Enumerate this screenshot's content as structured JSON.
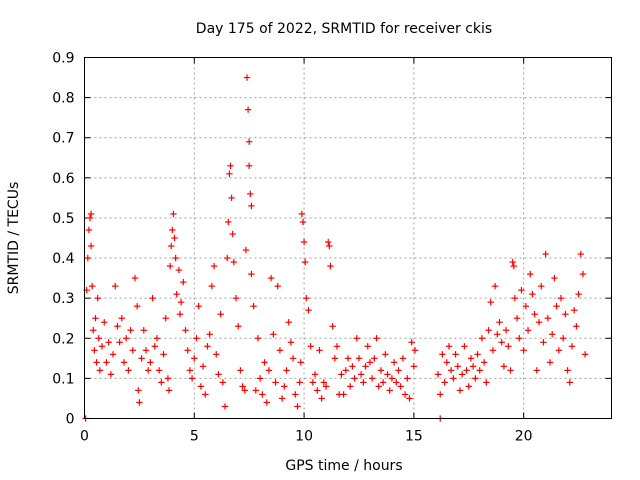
{
  "chart_data": {
    "type": "scatter",
    "title": "Day 175 of 2022, SRMTID for receiver ckis",
    "xlabel": "GPS time / hours",
    "ylabel": "SRMTID / TECUs",
    "xlim": [
      0,
      24
    ],
    "ylim": [
      0,
      0.9
    ],
    "x_ticks": [
      0,
      5,
      10,
      15,
      20
    ],
    "x_tick_labels": [
      "0",
      "5",
      "10",
      "15",
      "20"
    ],
    "y_ticks": [
      0,
      0.1,
      0.2,
      0.3,
      0.4,
      0.5,
      0.6,
      0.7,
      0.8,
      0.9
    ],
    "y_tick_labels": [
      "0",
      "0.1",
      "0.2",
      "0.3",
      "0.4",
      "0.5",
      "0.6",
      "0.7",
      "0.8",
      "0.9"
    ],
    "grid": true,
    "marker": "+",
    "color": "#ff0000",
    "series": [
      {
        "name": "SRMTID",
        "points": [
          [
            0.05,
            0.0
          ],
          [
            16.2,
            0.0
          ],
          [
            0.1,
            0.32
          ],
          [
            0.15,
            0.4
          ],
          [
            0.2,
            0.47
          ],
          [
            0.25,
            0.5
          ],
          [
            0.3,
            0.51
          ],
          [
            0.3,
            0.43
          ],
          [
            0.35,
            0.33
          ],
          [
            0.4,
            0.22
          ],
          [
            0.45,
            0.17
          ],
          [
            0.5,
            0.25
          ],
          [
            0.55,
            0.14
          ],
          [
            0.6,
            0.3
          ],
          [
            0.65,
            0.2
          ],
          [
            0.7,
            0.12
          ],
          [
            0.8,
            0.18
          ],
          [
            0.9,
            0.24
          ],
          [
            1.0,
            0.14
          ],
          [
            1.1,
            0.19
          ],
          [
            1.2,
            0.11
          ],
          [
            1.3,
            0.16
          ],
          [
            1.4,
            0.33
          ],
          [
            1.5,
            0.23
          ],
          [
            1.6,
            0.19
          ],
          [
            1.7,
            0.25
          ],
          [
            1.8,
            0.14
          ],
          [
            1.9,
            0.2
          ],
          [
            2.0,
            0.12
          ],
          [
            2.1,
            0.22
          ],
          [
            2.2,
            0.17
          ],
          [
            2.3,
            0.35
          ],
          [
            2.4,
            0.28
          ],
          [
            2.45,
            0.07
          ],
          [
            2.5,
            0.04
          ],
          [
            2.6,
            0.15
          ],
          [
            2.7,
            0.22
          ],
          [
            2.8,
            0.17
          ],
          [
            2.9,
            0.12
          ],
          [
            3.0,
            0.14
          ],
          [
            3.1,
            0.3
          ],
          [
            3.2,
            0.18
          ],
          [
            3.3,
            0.2
          ],
          [
            3.4,
            0.12
          ],
          [
            3.5,
            0.09
          ],
          [
            3.6,
            0.16
          ],
          [
            3.7,
            0.25
          ],
          [
            3.8,
            0.1
          ],
          [
            3.85,
            0.07
          ],
          [
            3.9,
            0.38
          ],
          [
            3.95,
            0.43
          ],
          [
            4.0,
            0.47
          ],
          [
            4.05,
            0.51
          ],
          [
            4.1,
            0.45
          ],
          [
            4.15,
            0.4
          ],
          [
            4.2,
            0.31
          ],
          [
            4.3,
            0.37
          ],
          [
            4.35,
            0.26
          ],
          [
            4.4,
            0.29
          ],
          [
            4.5,
            0.34
          ],
          [
            4.6,
            0.22
          ],
          [
            4.7,
            0.17
          ],
          [
            4.8,
            0.12
          ],
          [
            4.9,
            0.1
          ],
          [
            5.0,
            0.15
          ],
          [
            5.1,
            0.2
          ],
          [
            5.2,
            0.28
          ],
          [
            5.3,
            0.08
          ],
          [
            5.4,
            0.13
          ],
          [
            5.5,
            0.06
          ],
          [
            5.6,
            0.18
          ],
          [
            5.7,
            0.21
          ],
          [
            5.8,
            0.33
          ],
          [
            5.9,
            0.38
          ],
          [
            6.0,
            0.16
          ],
          [
            6.1,
            0.11
          ],
          [
            6.2,
            0.26
          ],
          [
            6.3,
            0.09
          ],
          [
            6.4,
            0.03
          ],
          [
            6.5,
            0.4
          ],
          [
            6.55,
            0.49
          ],
          [
            6.6,
            0.61
          ],
          [
            6.65,
            0.63
          ],
          [
            6.7,
            0.55
          ],
          [
            6.75,
            0.46
          ],
          [
            6.8,
            0.39
          ],
          [
            6.9,
            0.3
          ],
          [
            7.0,
            0.23
          ],
          [
            7.1,
            0.12
          ],
          [
            7.2,
            0.08
          ],
          [
            7.3,
            0.07
          ],
          [
            7.35,
            0.42
          ],
          [
            7.4,
            0.85
          ],
          [
            7.45,
            0.77
          ],
          [
            7.5,
            0.69
          ],
          [
            7.5,
            0.63
          ],
          [
            7.55,
            0.56
          ],
          [
            7.6,
            0.53
          ],
          [
            7.6,
            0.36
          ],
          [
            7.7,
            0.28
          ],
          [
            7.8,
            0.07
          ],
          [
            7.9,
            0.2
          ],
          [
            8.0,
            0.1
          ],
          [
            8.1,
            0.06
          ],
          [
            8.2,
            0.14
          ],
          [
            8.3,
            0.04
          ],
          [
            8.4,
            0.12
          ],
          [
            8.5,
            0.35
          ],
          [
            8.6,
            0.21
          ],
          [
            8.7,
            0.09
          ],
          [
            8.8,
            0.33
          ],
          [
            8.9,
            0.17
          ],
          [
            9.0,
            0.05
          ],
          [
            9.1,
            0.08
          ],
          [
            9.2,
            0.12
          ],
          [
            9.3,
            0.24
          ],
          [
            9.4,
            0.19
          ],
          [
            9.5,
            0.15
          ],
          [
            9.6,
            0.06
          ],
          [
            9.7,
            0.03
          ],
          [
            9.8,
            0.09
          ],
          [
            9.85,
            0.14
          ],
          [
            9.9,
            0.51
          ],
          [
            9.95,
            0.49
          ],
          [
            10.0,
            0.44
          ],
          [
            10.05,
            0.39
          ],
          [
            10.1,
            0.3
          ],
          [
            10.2,
            0.27
          ],
          [
            10.3,
            0.18
          ],
          [
            10.4,
            0.09
          ],
          [
            10.5,
            0.11
          ],
          [
            10.6,
            0.07
          ],
          [
            10.7,
            0.17
          ],
          [
            10.8,
            0.05
          ],
          [
            10.9,
            0.09
          ],
          [
            11.0,
            0.08
          ],
          [
            11.1,
            0.44
          ],
          [
            11.15,
            0.43
          ],
          [
            11.2,
            0.38
          ],
          [
            11.3,
            0.23
          ],
          [
            11.4,
            0.15
          ],
          [
            11.5,
            0.18
          ],
          [
            11.6,
            0.06
          ],
          [
            11.7,
            0.11
          ],
          [
            11.8,
            0.06
          ],
          [
            11.9,
            0.12
          ],
          [
            12.0,
            0.15
          ],
          [
            12.1,
            0.08
          ],
          [
            12.2,
            0.13
          ],
          [
            12.3,
            0.1
          ],
          [
            12.4,
            0.2
          ],
          [
            12.5,
            0.15
          ],
          [
            12.6,
            0.11
          ],
          [
            12.7,
            0.09
          ],
          [
            12.8,
            0.13
          ],
          [
            12.9,
            0.18
          ],
          [
            13.0,
            0.14
          ],
          [
            13.1,
            0.1
          ],
          [
            13.2,
            0.15
          ],
          [
            13.3,
            0.2
          ],
          [
            13.4,
            0.08
          ],
          [
            13.5,
            0.12
          ],
          [
            13.6,
            0.09
          ],
          [
            13.7,
            0.16
          ],
          [
            13.8,
            0.11
          ],
          [
            13.9,
            0.07
          ],
          [
            14.0,
            0.1
          ],
          [
            14.1,
            0.14
          ],
          [
            14.2,
            0.09
          ],
          [
            14.3,
            0.12
          ],
          [
            14.4,
            0.08
          ],
          [
            14.5,
            0.15
          ],
          [
            14.6,
            0.06
          ],
          [
            14.7,
            0.1
          ],
          [
            14.8,
            0.05
          ],
          [
            14.9,
            0.19
          ],
          [
            15.0,
            0.13
          ],
          [
            15.05,
            0.17
          ],
          [
            16.1,
            0.11
          ],
          [
            16.2,
            0.06
          ],
          [
            16.3,
            0.16
          ],
          [
            16.4,
            0.09
          ],
          [
            16.5,
            0.14
          ],
          [
            16.6,
            0.18
          ],
          [
            16.7,
            0.12
          ],
          [
            16.8,
            0.1
          ],
          [
            16.9,
            0.16
          ],
          [
            17.0,
            0.13
          ],
          [
            17.1,
            0.07
          ],
          [
            17.2,
            0.11
          ],
          [
            17.3,
            0.18
          ],
          [
            17.4,
            0.12
          ],
          [
            17.5,
            0.08
          ],
          [
            17.6,
            0.15
          ],
          [
            17.7,
            0.13
          ],
          [
            17.8,
            0.1
          ],
          [
            17.9,
            0.16
          ],
          [
            18.0,
            0.12
          ],
          [
            18.1,
            0.2
          ],
          [
            18.2,
            0.14
          ],
          [
            18.3,
            0.09
          ],
          [
            18.4,
            0.22
          ],
          [
            18.5,
            0.29
          ],
          [
            18.6,
            0.17
          ],
          [
            18.7,
            0.33
          ],
          [
            18.8,
            0.21
          ],
          [
            18.9,
            0.24
          ],
          [
            19.0,
            0.19
          ],
          [
            19.1,
            0.13
          ],
          [
            19.2,
            0.22
          ],
          [
            19.3,
            0.18
          ],
          [
            19.4,
            0.12
          ],
          [
            19.5,
            0.39
          ],
          [
            19.55,
            0.38
          ],
          [
            19.6,
            0.3
          ],
          [
            19.7,
            0.25
          ],
          [
            19.8,
            0.2
          ],
          [
            19.9,
            0.32
          ],
          [
            20.0,
            0.17
          ],
          [
            20.1,
            0.28
          ],
          [
            20.2,
            0.22
          ],
          [
            20.3,
            0.36
          ],
          [
            20.4,
            0.31
          ],
          [
            20.5,
            0.26
          ],
          [
            20.6,
            0.12
          ],
          [
            20.7,
            0.24
          ],
          [
            20.8,
            0.33
          ],
          [
            20.9,
            0.19
          ],
          [
            21.0,
            0.41
          ],
          [
            21.1,
            0.25
          ],
          [
            21.2,
            0.14
          ],
          [
            21.3,
            0.21
          ],
          [
            21.4,
            0.35
          ],
          [
            21.5,
            0.28
          ],
          [
            21.6,
            0.17
          ],
          [
            21.7,
            0.3
          ],
          [
            21.8,
            0.2
          ],
          [
            21.9,
            0.26
          ],
          [
            22.0,
            0.12
          ],
          [
            22.1,
            0.09
          ],
          [
            22.2,
            0.18
          ],
          [
            22.3,
            0.27
          ],
          [
            22.4,
            0.23
          ],
          [
            22.5,
            0.31
          ],
          [
            22.6,
            0.41
          ],
          [
            22.7,
            0.36
          ],
          [
            22.8,
            0.16
          ]
        ]
      }
    ]
  }
}
